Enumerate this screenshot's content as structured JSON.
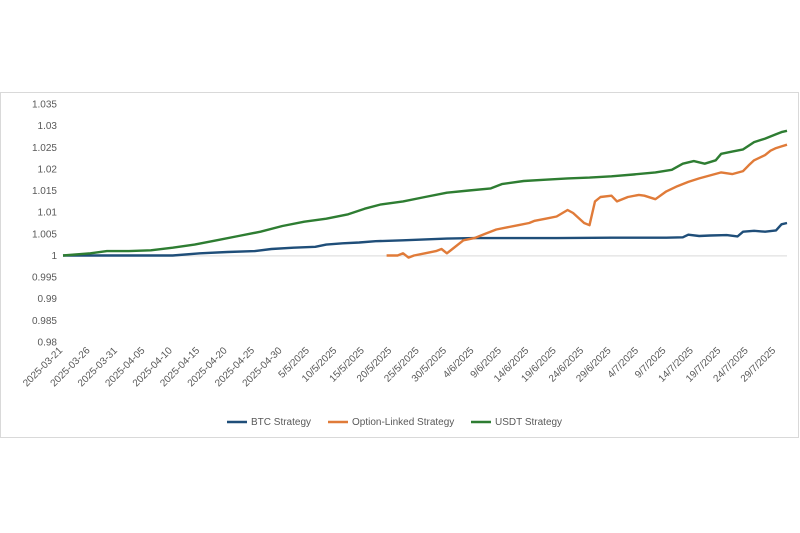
{
  "chart_data": {
    "type": "line",
    "title": "",
    "xlabel": "",
    "ylabel": "",
    "ylim": [
      0.98,
      1.035
    ],
    "y_ticks": [
      "0.98",
      "0.985",
      "0.99",
      "0.995",
      "1",
      "1.005",
      "1.01",
      "1.015",
      "1.02",
      "1.025",
      "1.03",
      "1.035"
    ],
    "x_tick_labels": [
      "2025-03-21",
      "2025-03-26",
      "2025-03-31",
      "2025-04-05",
      "2025-04-10",
      "2025-04-15",
      "2025-04-20",
      "2025-04-25",
      "2025-04-30",
      "5/5/2025",
      "10/5/2025",
      "15/5/2025",
      "20/5/2025",
      "25/5/2025",
      "30/5/2025",
      "4/6/2025",
      "9/6/2025",
      "14/6/2025",
      "19/6/2025",
      "24/6/2025",
      "29/6/2025",
      "4/7/2025",
      "9/7/2025",
      "14/7/2025",
      "19/7/2025",
      "24/7/2025",
      "29/7/2025"
    ],
    "x_tick_days": [
      0,
      5,
      10,
      15,
      20,
      25,
      30,
      35,
      40,
      45,
      50,
      55,
      60,
      65,
      70,
      75,
      80,
      85,
      90,
      95,
      100,
      105,
      110,
      115,
      120,
      125,
      130
    ],
    "x_range_days": [
      0,
      132
    ],
    "grid": false,
    "legend_position": "bottom",
    "series": [
      {
        "name": "BTC Strategy",
        "color": "#1f4e79",
        "points": [
          [
            0,
            1.0
          ],
          [
            10,
            1.0
          ],
          [
            20,
            1.0
          ],
          [
            25,
            1.0005
          ],
          [
            30,
            1.0008
          ],
          [
            35,
            1.001
          ],
          [
            38,
            1.0015
          ],
          [
            42,
            1.0018
          ],
          [
            46,
            1.002
          ],
          [
            48,
            1.0025
          ],
          [
            51,
            1.0028
          ],
          [
            54,
            1.003
          ],
          [
            57,
            1.0033
          ],
          [
            62,
            1.0035
          ],
          [
            66,
            1.0037
          ],
          [
            70,
            1.0039
          ],
          [
            75,
            1.004
          ],
          [
            80,
            1.004
          ],
          [
            90,
            1.004
          ],
          [
            100,
            1.0041
          ],
          [
            110,
            1.0041
          ],
          [
            113,
            1.0042
          ],
          [
            114,
            1.0048
          ],
          [
            116,
            1.0045
          ],
          [
            118,
            1.0046
          ],
          [
            121,
            1.0047
          ],
          [
            123,
            1.0044
          ],
          [
            124,
            1.0055
          ],
          [
            126,
            1.0057
          ],
          [
            128,
            1.0055
          ],
          [
            130,
            1.0058
          ],
          [
            131,
            1.0072
          ],
          [
            132,
            1.0075
          ]
        ]
      },
      {
        "name": "Option-Linked Strategy",
        "color": "#e07b39",
        "points": [
          [
            59,
            1.0
          ],
          [
            61,
            1.0
          ],
          [
            62,
            1.0005
          ],
          [
            63,
            0.9995
          ],
          [
            64,
            1.0
          ],
          [
            66,
            1.0005
          ],
          [
            68,
            1.001
          ],
          [
            69,
            1.0015
          ],
          [
            70,
            1.0005
          ],
          [
            71,
            1.0015
          ],
          [
            73,
            1.0035
          ],
          [
            75,
            1.004
          ],
          [
            77,
            1.005
          ],
          [
            79,
            1.006
          ],
          [
            81,
            1.0065
          ],
          [
            83,
            1.007
          ],
          [
            85,
            1.0075
          ],
          [
            86,
            1.008
          ],
          [
            88,
            1.0085
          ],
          [
            90,
            1.009
          ],
          [
            92,
            1.0105
          ],
          [
            93,
            1.0098
          ],
          [
            95,
            1.0075
          ],
          [
            96,
            1.007
          ],
          [
            97,
            1.0125
          ],
          [
            98,
            1.0135
          ],
          [
            100,
            1.0138
          ],
          [
            101,
            1.0125
          ],
          [
            103,
            1.0135
          ],
          [
            105,
            1.014
          ],
          [
            106,
            1.0138
          ],
          [
            108,
            1.013
          ],
          [
            110,
            1.0148
          ],
          [
            112,
            1.016
          ],
          [
            114,
            1.017
          ],
          [
            116,
            1.0178
          ],
          [
            118,
            1.0185
          ],
          [
            120,
            1.0192
          ],
          [
            122,
            1.0188
          ],
          [
            124,
            1.0195
          ],
          [
            125,
            1.0208
          ],
          [
            126,
            1.022
          ],
          [
            128,
            1.0232
          ],
          [
            129,
            1.0242
          ],
          [
            130,
            1.0248
          ],
          [
            131,
            1.0252
          ],
          [
            132,
            1.0256
          ]
        ]
      },
      {
        "name": "USDT Strategy",
        "color": "#2e7d32",
        "points": [
          [
            0,
            1.0
          ],
          [
            5,
            1.0005
          ],
          [
            8,
            1.001
          ],
          [
            12,
            1.001
          ],
          [
            16,
            1.0012
          ],
          [
            20,
            1.0018
          ],
          [
            24,
            1.0025
          ],
          [
            28,
            1.0035
          ],
          [
            32,
            1.0045
          ],
          [
            36,
            1.0055
          ],
          [
            40,
            1.0068
          ],
          [
            44,
            1.0078
          ],
          [
            48,
            1.0085
          ],
          [
            52,
            1.0095
          ],
          [
            55,
            1.0108
          ],
          [
            58,
            1.0118
          ],
          [
            62,
            1.0125
          ],
          [
            66,
            1.0135
          ],
          [
            70,
            1.0145
          ],
          [
            74,
            1.015
          ],
          [
            78,
            1.0155
          ],
          [
            80,
            1.0165
          ],
          [
            84,
            1.0172
          ],
          [
            88,
            1.0175
          ],
          [
            92,
            1.0178
          ],
          [
            96,
            1.018
          ],
          [
            100,
            1.0183
          ],
          [
            104,
            1.0187
          ],
          [
            108,
            1.0192
          ],
          [
            111,
            1.0198
          ],
          [
            113,
            1.0212
          ],
          [
            115,
            1.0218
          ],
          [
            117,
            1.0212
          ],
          [
            119,
            1.022
          ],
          [
            120,
            1.0235
          ],
          [
            122,
            1.024
          ],
          [
            124,
            1.0245
          ],
          [
            126,
            1.0262
          ],
          [
            128,
            1.027
          ],
          [
            130,
            1.028
          ],
          [
            131,
            1.0285
          ],
          [
            132,
            1.0288
          ]
        ]
      }
    ]
  }
}
